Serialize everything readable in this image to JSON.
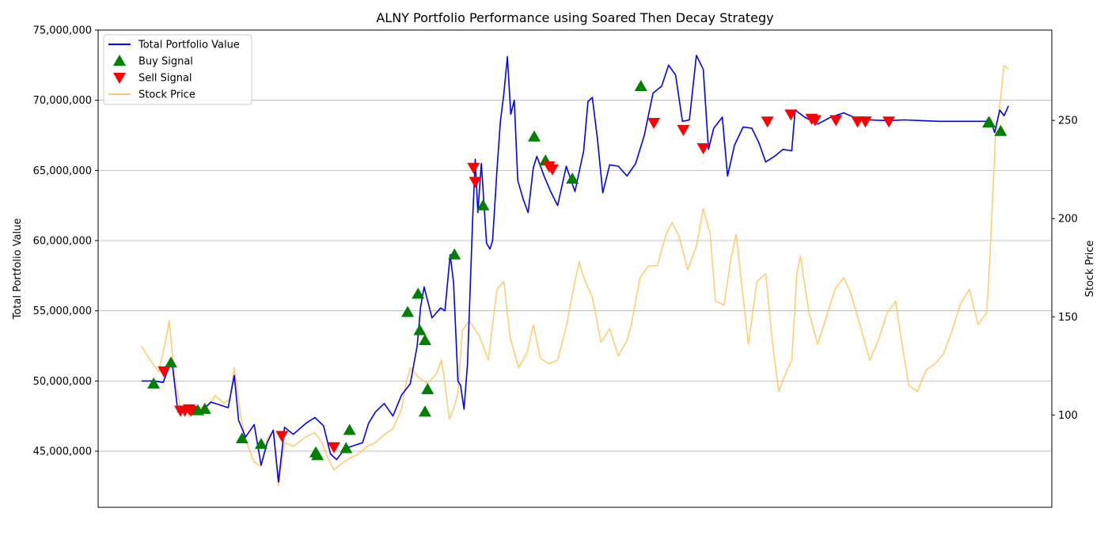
{
  "chart_data": {
    "type": "line",
    "title": "ALNY Portfolio Performance using Soared Then Decay Strategy",
    "xlabel": "",
    "ylabel": "Total Portfolio Value",
    "ylabel_right": "Stock Price",
    "ylim": [
      41000000,
      75000000
    ],
    "ylim_right": [
      53,
      296
    ],
    "xlim": [
      -0.05,
      1.05
    ],
    "grid": "horizontal",
    "legend_placement": "top-left",
    "y_ticks": [
      {
        "value": 45000000,
        "label": "45,000,000"
      },
      {
        "value": 50000000,
        "label": "50,000,000"
      },
      {
        "value": 55000000,
        "label": "55,000,000"
      },
      {
        "value": 60000000,
        "label": "60,000,000"
      },
      {
        "value": 65000000,
        "label": "65,000,000"
      },
      {
        "value": 70000000,
        "label": "70,000,000"
      },
      {
        "value": 75000000,
        "label": "75,000,000"
      }
    ],
    "y_ticks_right": [
      {
        "value": 100,
        "label": "100"
      },
      {
        "value": 150,
        "label": "150"
      },
      {
        "value": 200,
        "label": "200"
      },
      {
        "value": 250,
        "label": "250"
      }
    ],
    "series": [
      {
        "name": "Total Portfolio Value",
        "axis": "left",
        "color": "#0000ff",
        "points": [
          [
            0.0,
            50000000
          ],
          [
            0.015,
            50000000
          ],
          [
            0.025,
            49900000
          ],
          [
            0.035,
            51500000
          ],
          [
            0.042,
            47800000
          ],
          [
            0.05,
            47900000
          ],
          [
            0.06,
            48000000
          ],
          [
            0.07,
            47900000
          ],
          [
            0.08,
            48500000
          ],
          [
            0.09,
            48300000
          ],
          [
            0.1,
            48100000
          ],
          [
            0.107,
            50400000
          ],
          [
            0.112,
            47200000
          ],
          [
            0.12,
            46000000
          ],
          [
            0.13,
            46900000
          ],
          [
            0.138,
            44000000
          ],
          [
            0.145,
            45600000
          ],
          [
            0.152,
            46500000
          ],
          [
            0.158,
            42800000
          ],
          [
            0.165,
            46700000
          ],
          [
            0.175,
            46200000
          ],
          [
            0.19,
            47000000
          ],
          [
            0.2,
            47400000
          ],
          [
            0.21,
            46800000
          ],
          [
            0.218,
            44800000
          ],
          [
            0.225,
            44400000
          ],
          [
            0.235,
            45200000
          ],
          [
            0.245,
            45400000
          ],
          [
            0.255,
            45600000
          ],
          [
            0.262,
            47000000
          ],
          [
            0.27,
            47800000
          ],
          [
            0.28,
            48400000
          ],
          [
            0.29,
            47500000
          ],
          [
            0.3,
            49000000
          ],
          [
            0.31,
            49800000
          ],
          [
            0.318,
            52500000
          ],
          [
            0.322,
            55300000
          ],
          [
            0.326,
            56700000
          ],
          [
            0.335,
            54500000
          ],
          [
            0.345,
            55200000
          ],
          [
            0.35,
            55000000
          ],
          [
            0.356,
            59000000
          ],
          [
            0.36,
            57000000
          ],
          [
            0.365,
            50000000
          ],
          [
            0.368,
            49700000
          ],
          [
            0.372,
            48000000
          ],
          [
            0.376,
            51200000
          ],
          [
            0.382,
            61500000
          ],
          [
            0.385,
            65800000
          ],
          [
            0.388,
            62000000
          ],
          [
            0.392,
            65500000
          ],
          [
            0.398,
            59800000
          ],
          [
            0.402,
            59400000
          ],
          [
            0.405,
            60000000
          ],
          [
            0.41,
            65000000
          ],
          [
            0.414,
            68500000
          ],
          [
            0.418,
            70500000
          ],
          [
            0.422,
            73100000
          ],
          [
            0.426,
            69000000
          ],
          [
            0.43,
            70000000
          ],
          [
            0.434,
            64300000
          ],
          [
            0.44,
            63000000
          ],
          [
            0.446,
            62000000
          ],
          [
            0.452,
            65200000
          ],
          [
            0.456,
            66000000
          ],
          [
            0.465,
            64500000
          ],
          [
            0.472,
            63500000
          ],
          [
            0.48,
            62500000
          ],
          [
            0.49,
            65300000
          ],
          [
            0.5,
            63500000
          ],
          [
            0.51,
            66400000
          ],
          [
            0.515,
            69900000
          ],
          [
            0.52,
            70200000
          ],
          [
            0.526,
            67200000
          ],
          [
            0.532,
            63400000
          ],
          [
            0.54,
            65400000
          ],
          [
            0.55,
            65300000
          ],
          [
            0.56,
            64600000
          ],
          [
            0.57,
            65500000
          ],
          [
            0.58,
            67500000
          ],
          [
            0.59,
            70500000
          ],
          [
            0.6,
            71000000
          ],
          [
            0.608,
            72500000
          ],
          [
            0.616,
            71800000
          ],
          [
            0.624,
            68500000
          ],
          [
            0.632,
            68600000
          ],
          [
            0.64,
            73200000
          ],
          [
            0.648,
            72200000
          ],
          [
            0.654,
            66500000
          ],
          [
            0.66,
            68000000
          ],
          [
            0.67,
            68800000
          ],
          [
            0.676,
            64600000
          ],
          [
            0.684,
            66800000
          ],
          [
            0.694,
            68100000
          ],
          [
            0.704,
            68000000
          ],
          [
            0.712,
            67000000
          ],
          [
            0.72,
            65600000
          ],
          [
            0.73,
            66000000
          ],
          [
            0.74,
            66500000
          ],
          [
            0.75,
            66400000
          ],
          [
            0.754,
            69300000
          ],
          [
            0.765,
            68800000
          ],
          [
            0.78,
            68300000
          ],
          [
            0.795,
            68800000
          ],
          [
            0.81,
            69100000
          ],
          [
            0.825,
            68700000
          ],
          [
            0.84,
            68600000
          ],
          [
            0.86,
            68550000
          ],
          [
            0.88,
            68600000
          ],
          [
            0.9,
            68550000
          ],
          [
            0.92,
            68500000
          ],
          [
            0.94,
            68500000
          ],
          [
            0.96,
            68500000
          ],
          [
            0.975,
            68500000
          ],
          [
            0.98,
            68500000
          ],
          [
            0.984,
            67700000
          ],
          [
            0.99,
            69300000
          ],
          [
            0.995,
            68900000
          ],
          [
            1.0,
            69600000
          ]
        ]
      },
      {
        "name": "Buy Signal",
        "axis": "left",
        "type": "scatter",
        "marker": "triangle-up",
        "color": "#008000",
        "points": [
          [
            0.014,
            49800000
          ],
          [
            0.034,
            51300000
          ],
          [
            0.065,
            47900000
          ],
          [
            0.073,
            48000000
          ],
          [
            0.116,
            45900000
          ],
          [
            0.138,
            45500000
          ],
          [
            0.201,
            44900000
          ],
          [
            0.203,
            44700000
          ],
          [
            0.236,
            45200000
          ],
          [
            0.24,
            46500000
          ],
          [
            0.307,
            54900000
          ],
          [
            0.319,
            56200000
          ],
          [
            0.321,
            53600000
          ],
          [
            0.327,
            52900000
          ],
          [
            0.327,
            47800000
          ],
          [
            0.33,
            49400000
          ],
          [
            0.361,
            59000000
          ],
          [
            0.394,
            62500000
          ],
          [
            0.453,
            67400000
          ],
          [
            0.466,
            65700000
          ],
          [
            0.497,
            64400000
          ],
          [
            0.576,
            71000000
          ],
          [
            0.977,
            68400000
          ],
          [
            0.978,
            68400000
          ],
          [
            0.991,
            67800000
          ]
        ]
      },
      {
        "name": "Sell Signal",
        "axis": "left",
        "type": "scatter",
        "marker": "triangle-down",
        "color": "#ff0000",
        "points": [
          [
            0.026,
            50700000
          ],
          [
            0.045,
            47900000
          ],
          [
            0.05,
            47900000
          ],
          [
            0.055,
            48000000
          ],
          [
            0.057,
            47900000
          ],
          [
            0.162,
            46100000
          ],
          [
            0.222,
            45300000
          ],
          [
            0.383,
            65200000
          ],
          [
            0.385,
            64200000
          ],
          [
            0.47,
            65300000
          ],
          [
            0.474,
            65100000
          ],
          [
            0.591,
            68400000
          ],
          [
            0.625,
            67900000
          ],
          [
            0.648,
            66600000
          ],
          [
            0.722,
            68500000
          ],
          [
            0.749,
            69000000
          ],
          [
            0.773,
            68700000
          ],
          [
            0.777,
            68600000
          ],
          [
            0.801,
            68600000
          ],
          [
            0.826,
            68500000
          ],
          [
            0.826,
            68500000
          ],
          [
            0.835,
            68500000
          ],
          [
            0.835,
            68500000
          ],
          [
            0.862,
            68500000
          ]
        ]
      },
      {
        "name": "Stock Price",
        "axis": "right",
        "color": "#ffc864",
        "points": [
          [
            0.0,
            135
          ],
          [
            0.01,
            128
          ],
          [
            0.02,
            122
          ],
          [
            0.028,
            138
          ],
          [
            0.032,
            148
          ],
          [
            0.038,
            120
          ],
          [
            0.045,
            103
          ],
          [
            0.055,
            101
          ],
          [
            0.065,
            104
          ],
          [
            0.075,
            103
          ],
          [
            0.085,
            110
          ],
          [
            0.095,
            106
          ],
          [
            0.102,
            108
          ],
          [
            0.107,
            124
          ],
          [
            0.115,
            98
          ],
          [
            0.122,
            85
          ],
          [
            0.13,
            76
          ],
          [
            0.138,
            74
          ],
          [
            0.145,
            88
          ],
          [
            0.152,
            92
          ],
          [
            0.158,
            64
          ],
          [
            0.165,
            86
          ],
          [
            0.175,
            84
          ],
          [
            0.19,
            89
          ],
          [
            0.2,
            91
          ],
          [
            0.208,
            86
          ],
          [
            0.215,
            78
          ],
          [
            0.222,
            72
          ],
          [
            0.23,
            75
          ],
          [
            0.24,
            78
          ],
          [
            0.25,
            80
          ],
          [
            0.26,
            84
          ],
          [
            0.27,
            86
          ],
          [
            0.28,
            90
          ],
          [
            0.29,
            93
          ],
          [
            0.3,
            103
          ],
          [
            0.305,
            116
          ],
          [
            0.31,
            124
          ],
          [
            0.32,
            119
          ],
          [
            0.33,
            116
          ],
          [
            0.34,
            121
          ],
          [
            0.346,
            128
          ],
          [
            0.35,
            116
          ],
          [
            0.355,
            98
          ],
          [
            0.36,
            103
          ],
          [
            0.365,
            111
          ],
          [
            0.37,
            143
          ],
          [
            0.378,
            148
          ],
          [
            0.39,
            140
          ],
          [
            0.4,
            128
          ],
          [
            0.41,
            164
          ],
          [
            0.418,
            168
          ],
          [
            0.425,
            140
          ],
          [
            0.435,
            124
          ],
          [
            0.445,
            132
          ],
          [
            0.452,
            146
          ],
          [
            0.46,
            129
          ],
          [
            0.47,
            126
          ],
          [
            0.48,
            128
          ],
          [
            0.49,
            145
          ],
          [
            0.5,
            168
          ],
          [
            0.505,
            178
          ],
          [
            0.51,
            170
          ],
          [
            0.52,
            160
          ],
          [
            0.53,
            137
          ],
          [
            0.54,
            144
          ],
          [
            0.55,
            130
          ],
          [
            0.56,
            138
          ],
          [
            0.565,
            146
          ],
          [
            0.575,
            170
          ],
          [
            0.585,
            176
          ],
          [
            0.595,
            176
          ],
          [
            0.605,
            192
          ],
          [
            0.612,
            198
          ],
          [
            0.62,
            191
          ],
          [
            0.63,
            174
          ],
          [
            0.64,
            186
          ],
          [
            0.648,
            205
          ],
          [
            0.656,
            192
          ],
          [
            0.662,
            158
          ],
          [
            0.672,
            156
          ],
          [
            0.68,
            180
          ],
          [
            0.686,
            192
          ],
          [
            0.694,
            160
          ],
          [
            0.7,
            136
          ],
          [
            0.71,
            168
          ],
          [
            0.72,
            172
          ],
          [
            0.728,
            136
          ],
          [
            0.735,
            112
          ],
          [
            0.742,
            120
          ],
          [
            0.75,
            128
          ],
          [
            0.756,
            172
          ],
          [
            0.76,
            181
          ],
          [
            0.77,
            152
          ],
          [
            0.78,
            136
          ],
          [
            0.79,
            150
          ],
          [
            0.8,
            164
          ],
          [
            0.81,
            170
          ],
          [
            0.818,
            162
          ],
          [
            0.83,
            144
          ],
          [
            0.84,
            128
          ],
          [
            0.85,
            138
          ],
          [
            0.86,
            152
          ],
          [
            0.87,
            158
          ],
          [
            0.875,
            142
          ],
          [
            0.885,
            115
          ],
          [
            0.895,
            112
          ],
          [
            0.905,
            123
          ],
          [
            0.915,
            126
          ],
          [
            0.925,
            131
          ],
          [
            0.935,
            143
          ],
          [
            0.945,
            157
          ],
          [
            0.955,
            164
          ],
          [
            0.965,
            146
          ],
          [
            0.975,
            152
          ],
          [
            0.978,
            175
          ],
          [
            0.981,
            203
          ],
          [
            0.985,
            242
          ],
          [
            0.99,
            258
          ],
          [
            0.995,
            278
          ],
          [
            1.0,
            276
          ]
        ]
      }
    ]
  }
}
